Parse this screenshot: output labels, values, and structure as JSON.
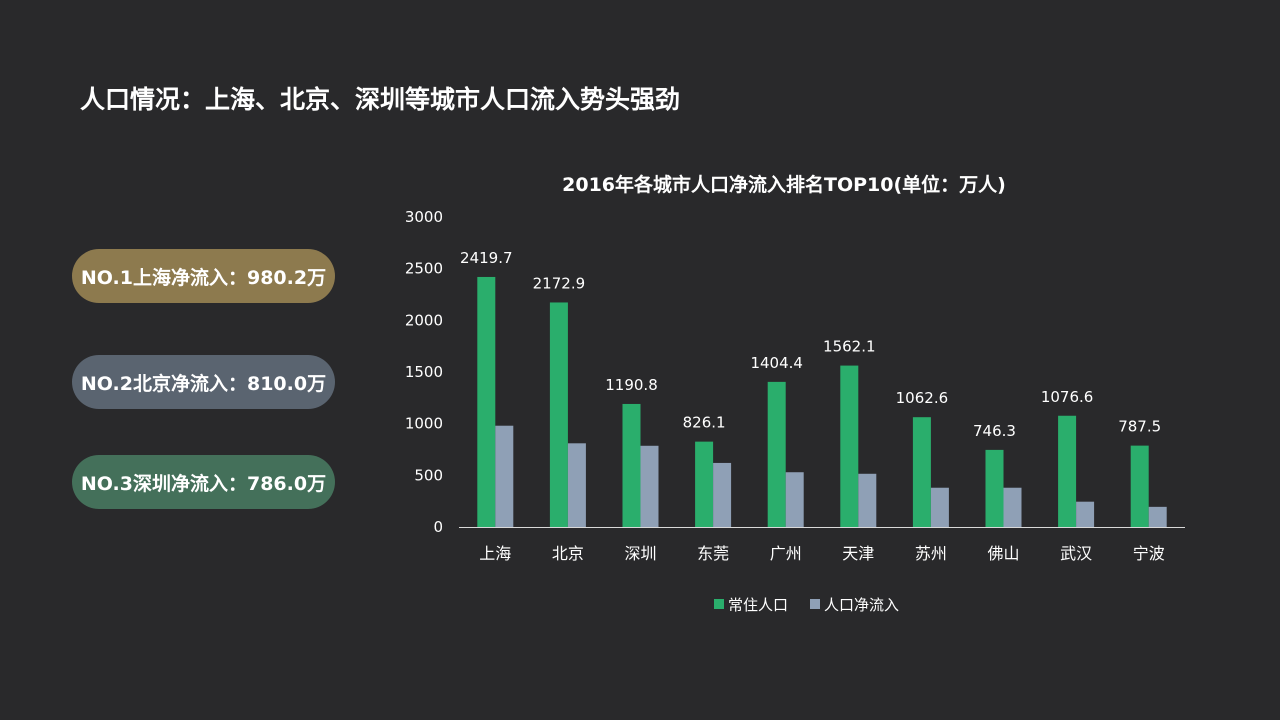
{
  "page": {
    "title": "人口情况：上海、北京、深圳等城市人口流入势头强劲"
  },
  "highlights": [
    {
      "text": "NO.1上海净流入：980.2万",
      "color": "#8d7a4e"
    },
    {
      "text": "NO.2北京净流入：810.0万",
      "color": "#5a6470"
    },
    {
      "text": "NO.3深圳净流入：786.0万",
      "color": "#44705a"
    }
  ],
  "chart_data": {
    "type": "bar",
    "title": "2016年各城市人口净流入排名TOP10(单位：万人)",
    "categories": [
      "上海",
      "北京",
      "深圳",
      "东莞",
      "广州",
      "天津",
      "苏州",
      "佛山",
      "武汉",
      "宁波"
    ],
    "series": [
      {
        "name": "常住人口",
        "color": "#2aae6c",
        "values": [
          2419.7,
          2172.9,
          1190.8,
          826.1,
          1404.4,
          1562.1,
          1062.6,
          746.3,
          1076.6,
          787.5
        ],
        "labels": [
          "2419.7",
          "2172.9",
          "1190.8",
          "826.1",
          "1404.4",
          "1562.1",
          "1062.6",
          "746.3",
          "1076.6",
          "787.5"
        ]
      },
      {
        "name": "人口净流入",
        "color": "#8fa0b6",
        "values": [
          980.2,
          810.0,
          786.0,
          620,
          530,
          515,
          380,
          380,
          245,
          195
        ]
      }
    ],
    "ylim": [
      0,
      3000
    ],
    "yticks": [
      0,
      500,
      1000,
      1500,
      2000,
      2500,
      3000
    ],
    "ytick_labels": [
      "0",
      "500",
      "1000",
      "1500",
      "2000",
      "2500",
      "3000"
    ],
    "legend": "bottom",
    "grid": false
  }
}
